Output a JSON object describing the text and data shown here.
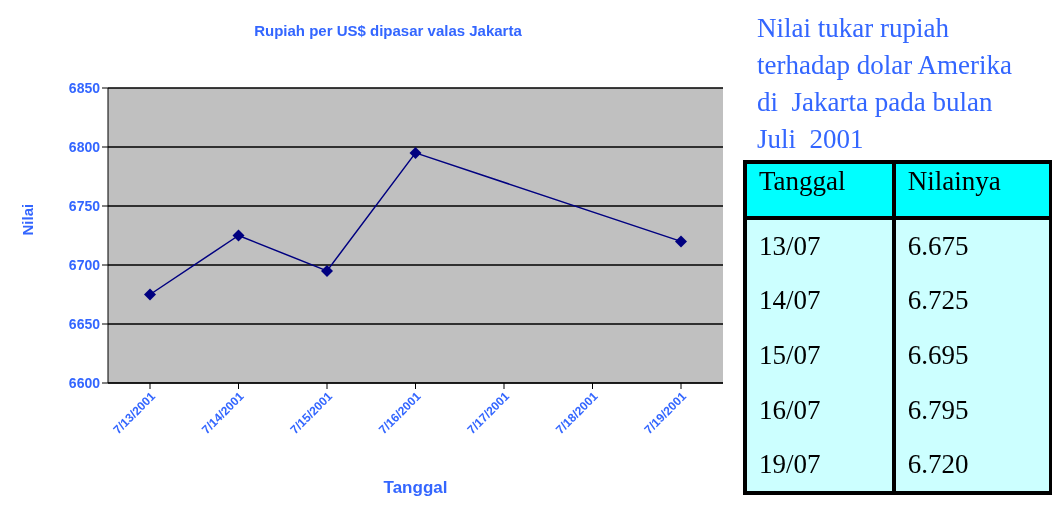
{
  "chart_data": {
    "type": "line",
    "title": "Rupiah per US$ dipasar valas Jakarta",
    "xlabel": "Tanggal",
    "ylabel": "Nilai",
    "categories": [
      "7/13/2001",
      "7/14/2001",
      "7/15/2001",
      "7/16/2001",
      "7/17/2001",
      "7/18/2001",
      "7/19/2001"
    ],
    "series": [
      {
        "color": "#000080",
        "values": [
          6675,
          6725,
          6695,
          6795,
          null,
          null,
          6720
        ]
      }
    ],
    "ylim": [
      6600,
      6850
    ],
    "yticks": [
      6600,
      6650,
      6700,
      6750,
      6800,
      6850
    ],
    "grid": "y",
    "marker": "diamond",
    "line_style": "solid",
    "annotations": [
      "Nilai tukar rupiah terhadap dolar Amerika di  Jakarta pada bulan Juli  2001",
      "Tanggal",
      "Nilainya",
      "13/07",
      "6.675",
      "14/07",
      "6.725",
      "15/07",
      "6.695",
      "16/07",
      "6.795",
      "19/07",
      "6.720"
    ]
  }
}
